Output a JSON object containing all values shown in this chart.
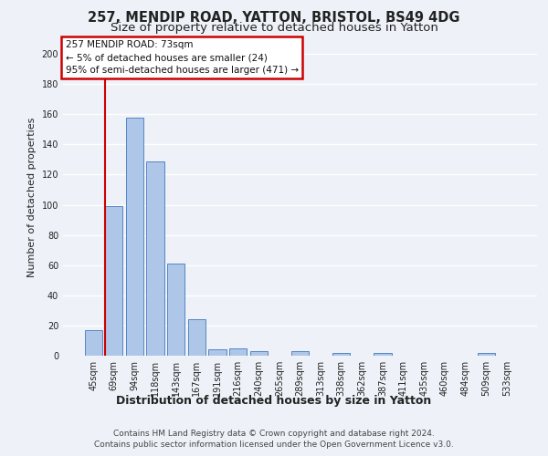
{
  "title1": "257, MENDIP ROAD, YATTON, BRISTOL, BS49 4DG",
  "title2": "Size of property relative to detached houses in Yatton",
  "xlabel": "Distribution of detached houses by size in Yatton",
  "ylabel": "Number of detached properties",
  "footer1": "Contains HM Land Registry data © Crown copyright and database right 2024.",
  "footer2": "Contains public sector information licensed under the Open Government Licence v3.0.",
  "annotation_line1": "257 MENDIP ROAD: 73sqm",
  "annotation_line2": "← 5% of detached houses are smaller (24)",
  "annotation_line3": "95% of semi-detached houses are larger (471) →",
  "bar_categories": [
    "45sqm",
    "69sqm",
    "94sqm",
    "118sqm",
    "143sqm",
    "167sqm",
    "191sqm",
    "216sqm",
    "240sqm",
    "265sqm",
    "289sqm",
    "313sqm",
    "338sqm",
    "362sqm",
    "387sqm",
    "411sqm",
    "435sqm",
    "460sqm",
    "484sqm",
    "509sqm",
    "533sqm"
  ],
  "bar_values": [
    17,
    99,
    158,
    129,
    61,
    24,
    4,
    5,
    3,
    0,
    3,
    0,
    2,
    0,
    2,
    0,
    0,
    0,
    0,
    2,
    0
  ],
  "bar_color": "#aec6e8",
  "bar_edge_color": "#5585c5",
  "red_line_x": 0.575,
  "red_line_color": "#cc0000",
  "annotation_box_color": "#cc0000",
  "annotation_fill_color": "#ffffff",
  "ylim": [
    0,
    210
  ],
  "yticks": [
    0,
    20,
    40,
    60,
    80,
    100,
    120,
    140,
    160,
    180,
    200
  ],
  "background_color": "#eef2f8",
  "plot_bg_color": "#eef2f8",
  "grid_color": "#ffffff",
  "title1_fontsize": 10.5,
  "title2_fontsize": 9.5,
  "xlabel_fontsize": 9,
  "ylabel_fontsize": 8,
  "tick_fontsize": 7,
  "annotation_fontsize": 7.5,
  "footer_fontsize": 6.5
}
